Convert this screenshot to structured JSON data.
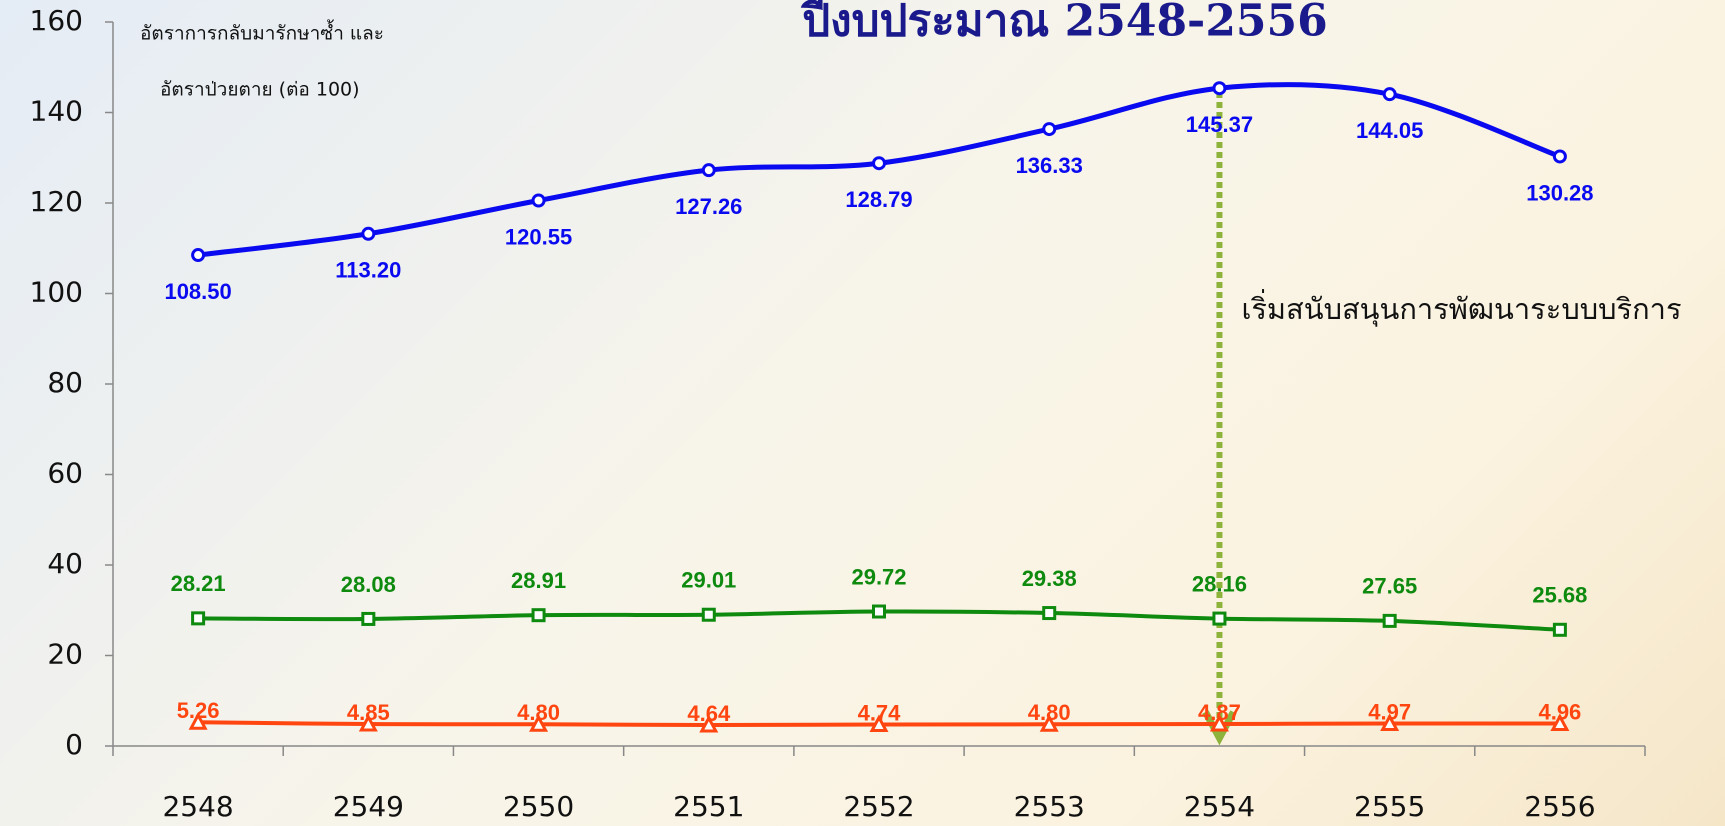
{
  "chart_data": {
    "type": "line",
    "title": "ปีงบประมาณ 2548-2556",
    "ylabel": [
      "อัตราการกลับมารักษาซ้ำ และ",
      "อัตราป่วยตาย (ต่อ 100)"
    ],
    "annotation": {
      "text": "เริ่มสนับสนุนการพัฒนาระบบบริการ",
      "category": "2554",
      "color": "#8db33a"
    },
    "categories": [
      "2548",
      "2549",
      "2550",
      "2551",
      "2552",
      "2553",
      "2554",
      "2555",
      "2556"
    ],
    "series": [
      {
        "color": "#0a0af0",
        "marker": "circle",
        "label_position": "below",
        "values": [
          108.5,
          113.2,
          120.55,
          127.26,
          128.79,
          136.33,
          145.37,
          144.05,
          130.28
        ],
        "value_labels": [
          "108.50",
          "113.20",
          "120.55",
          "127.26",
          "128.79",
          "136.33",
          "145.37",
          "144.05",
          "130.28"
        ]
      },
      {
        "color": "#0e8a0e",
        "marker": "square",
        "label_position": "above",
        "values": [
          28.21,
          28.08,
          28.91,
          29.01,
          29.72,
          29.38,
          28.16,
          27.65,
          25.68
        ],
        "value_labels": [
          "28.21",
          "28.08",
          "28.91",
          "29.01",
          "29.72",
          "29.38",
          "28.16",
          "27.65",
          "25.68"
        ]
      },
      {
        "color": "#ff4510",
        "marker": "triangle",
        "label_position": "above",
        "values": [
          5.26,
          4.85,
          4.8,
          4.64,
          4.74,
          4.8,
          4.87,
          4.97,
          4.96
        ],
        "value_labels": [
          "5.26",
          "4.85",
          "4.80",
          "4.64",
          "4.74",
          "4.80",
          "4.87",
          "4.97",
          "4.96"
        ]
      }
    ],
    "ylim": [
      0,
      160
    ],
    "yticks": [
      0,
      20,
      40,
      60,
      80,
      100,
      120,
      140,
      160
    ],
    "grid": false
  }
}
